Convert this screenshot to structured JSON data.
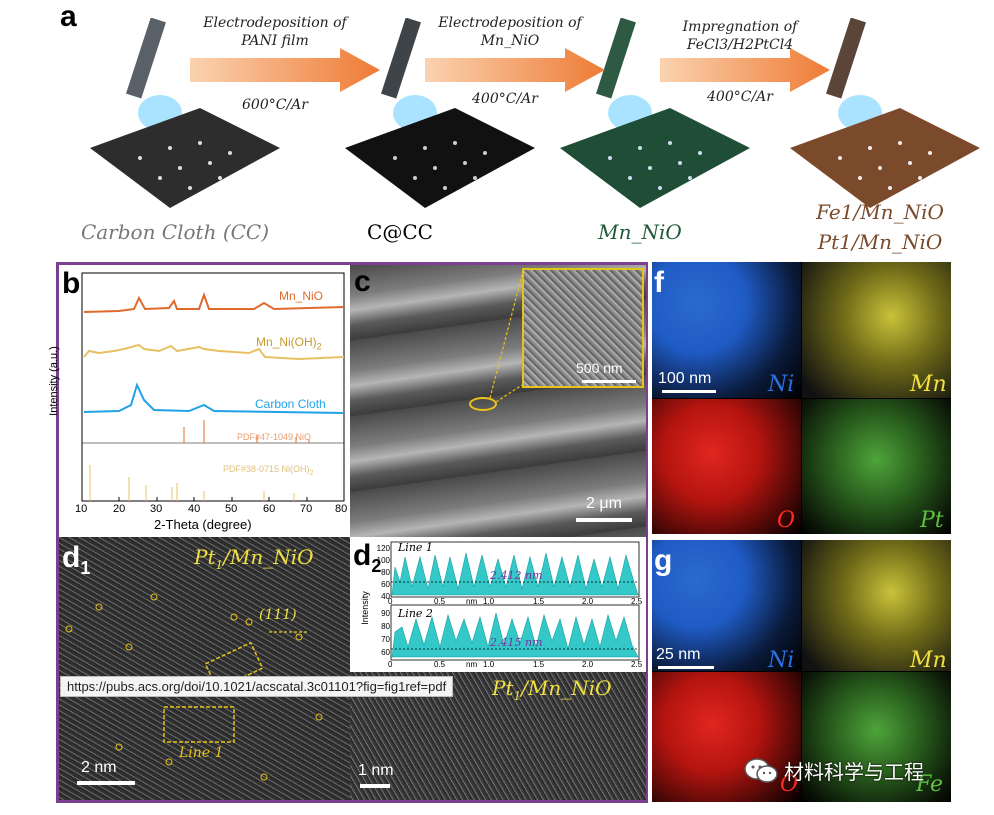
{
  "panel_a": {
    "letter": "a",
    "steps": [
      "Carbon Cloth (CC)",
      "C@CC",
      "Mn_NiO",
      "Fe1/Mn_NiO",
      "Pt1/Mn_NiO"
    ],
    "arrows": [
      {
        "top": "Electrodeposition of",
        "top2": "PANI film",
        "bottom": "600°C/Ar"
      },
      {
        "top": "Electrodeposition of",
        "top2": "Mn_NiO",
        "bottom": "400°C/Ar"
      },
      {
        "top": "Impregnation of",
        "top2": "FeCl3/H2PtCl4",
        "bottom": "400°C/Ar"
      }
    ]
  },
  "panel_b": {
    "letter": "b",
    "series_labels": [
      "Mn_NiO",
      "Mn_Ni(OH)2",
      "Carbon Cloth"
    ],
    "pdf_labels": [
      "PDF#47-1049 NiO",
      "PDF#38-0715 Ni(OH)2"
    ],
    "xlabel": "2-Theta (degree)",
    "ylabel": "Intensity (a.u.)",
    "xticks": [
      "10",
      "20",
      "30",
      "40",
      "50",
      "60",
      "70",
      "80"
    ]
  },
  "panel_c": {
    "letter": "c",
    "scale": "2 μm",
    "inset_scale": "500 nm"
  },
  "panel_d1": {
    "letter": "d",
    "sub": "1",
    "title": "Pt1/Mn_NiO",
    "plane": "(111)",
    "line_label": "Line 1",
    "scale": "2 nm"
  },
  "panel_d2": {
    "letter": "d",
    "sub": "2",
    "ylabel": "Intensity",
    "xlabel": "nm",
    "line1": {
      "name": "Line 1",
      "spacing": "2.412 nm",
      "yticks": [
        "120",
        "100",
        "80",
        "60",
        "40"
      ]
    },
    "line2": {
      "name": "Line 2",
      "spacing": "2.415 nm",
      "yticks": [
        "90",
        "80",
        "70",
        "60"
      ]
    },
    "xticks": [
      "0",
      "0.5",
      "1.0",
      "1.5",
      "2.0",
      "2.5"
    ]
  },
  "panel_e": {
    "title": "Pt1/Mn_NiO",
    "scale": "1 nm"
  },
  "panel_f": {
    "letter": "f",
    "scale": "100 nm",
    "elements": [
      "Ni",
      "Mn",
      "O",
      "Pt"
    ]
  },
  "panel_g": {
    "letter": "g",
    "scale": "25 nm",
    "elements": [
      "Ni",
      "Mn",
      "O",
      "Fe"
    ]
  },
  "colors": {
    "frame": "#7b3f8f",
    "mn_nio": "#e06a2c",
    "mn_ni_oh": "#e8c064",
    "cc": "#1fa3e6",
    "arrow": "#f29a5c"
  },
  "overlay": {
    "url": "https://pubs.acs.org/doi/10.1021/acscatal.3c01101?fig=fig1ref=pdf",
    "watermark": "材料科学与工程"
  }
}
